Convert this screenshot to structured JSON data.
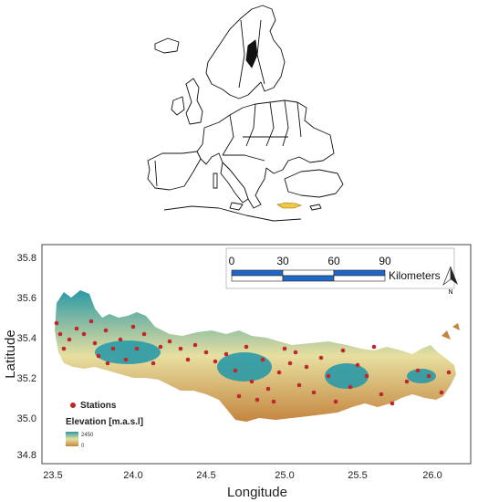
{
  "inset": {
    "highlight_color": "#f2c744"
  },
  "main_map": {
    "x_axis": {
      "label": "Longitude",
      "ticks": [
        "23.5",
        "24.0",
        "24.5",
        "25.0",
        "25.5",
        "26.0"
      ]
    },
    "y_axis": {
      "label": "Latitude",
      "ticks": [
        "35.8",
        "35.6",
        "35.4",
        "35.2",
        "35.0",
        "34.8"
      ]
    },
    "scale_bar": {
      "labels": [
        "0",
        "30",
        "60",
        "90"
      ],
      "unit": "Kilometers"
    },
    "north_arrow": {
      "label": "N"
    },
    "legend": {
      "stations_label": "Stations",
      "elevation_title": "Elevation [m.a.s.l]",
      "elevation_max": "2450",
      "elevation_min": "0"
    },
    "colors": {
      "station": "#c0262b",
      "elev_low": "#c4853f",
      "elev_mid": "#e7dfa0",
      "elev_high": "#2b9aa7",
      "scale_blue": "#1f66c9"
    }
  }
}
